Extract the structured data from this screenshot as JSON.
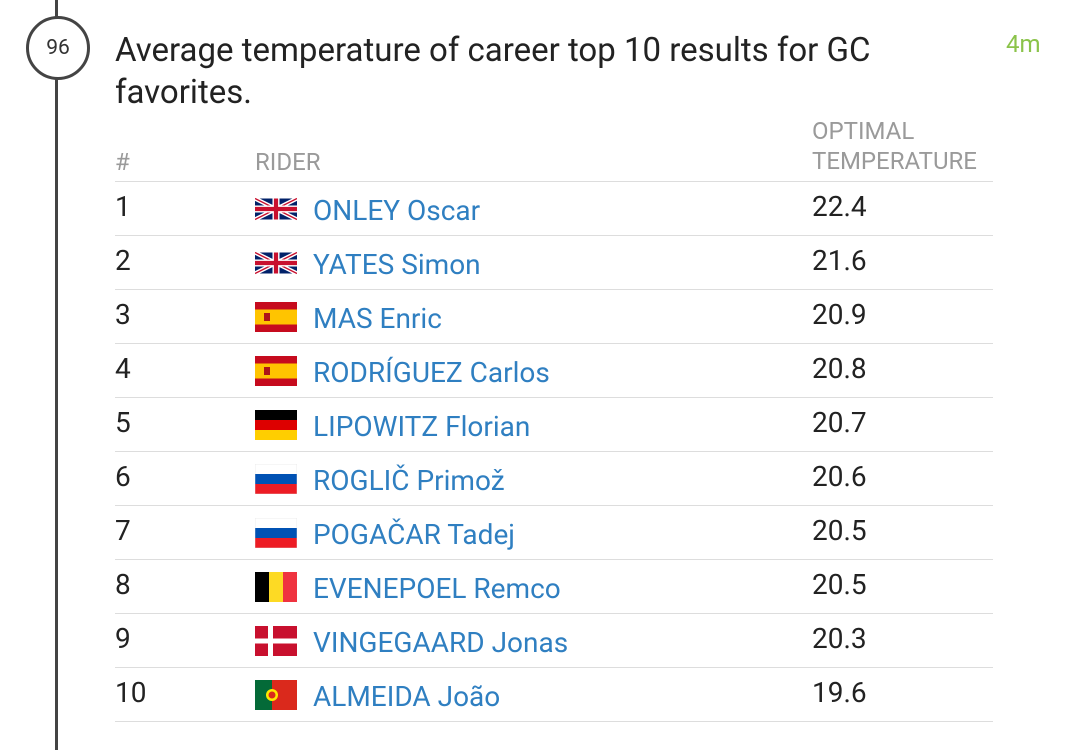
{
  "badge": "96",
  "title": "Average temperature of career top 10 results for GC favorites.",
  "time": "4m",
  "table": {
    "headers": [
      "#",
      "RIDER",
      "OPTIMAL TEMPERATURE"
    ],
    "rows": [
      [
        1,
        "ONLEY Oscar",
        22.4
      ],
      [
        2,
        "YATES Simon",
        21.6
      ],
      [
        3,
        "MAS Enric",
        20.9
      ],
      [
        4,
        "RODRÍGUEZ Carlos",
        20.8
      ],
      [
        5,
        "LIPOWITZ Florian",
        20.7
      ],
      [
        6,
        "ROGLIČ Primož",
        20.6
      ],
      [
        7,
        "POGAČAR Tadej",
        20.5
      ],
      [
        8,
        "EVENEPOEL Remco",
        20.5
      ],
      [
        9,
        "VINGEGAARD Jonas",
        20.3
      ],
      [
        10,
        "ALMEIDA João",
        19.6
      ]
    ]
  }
}
